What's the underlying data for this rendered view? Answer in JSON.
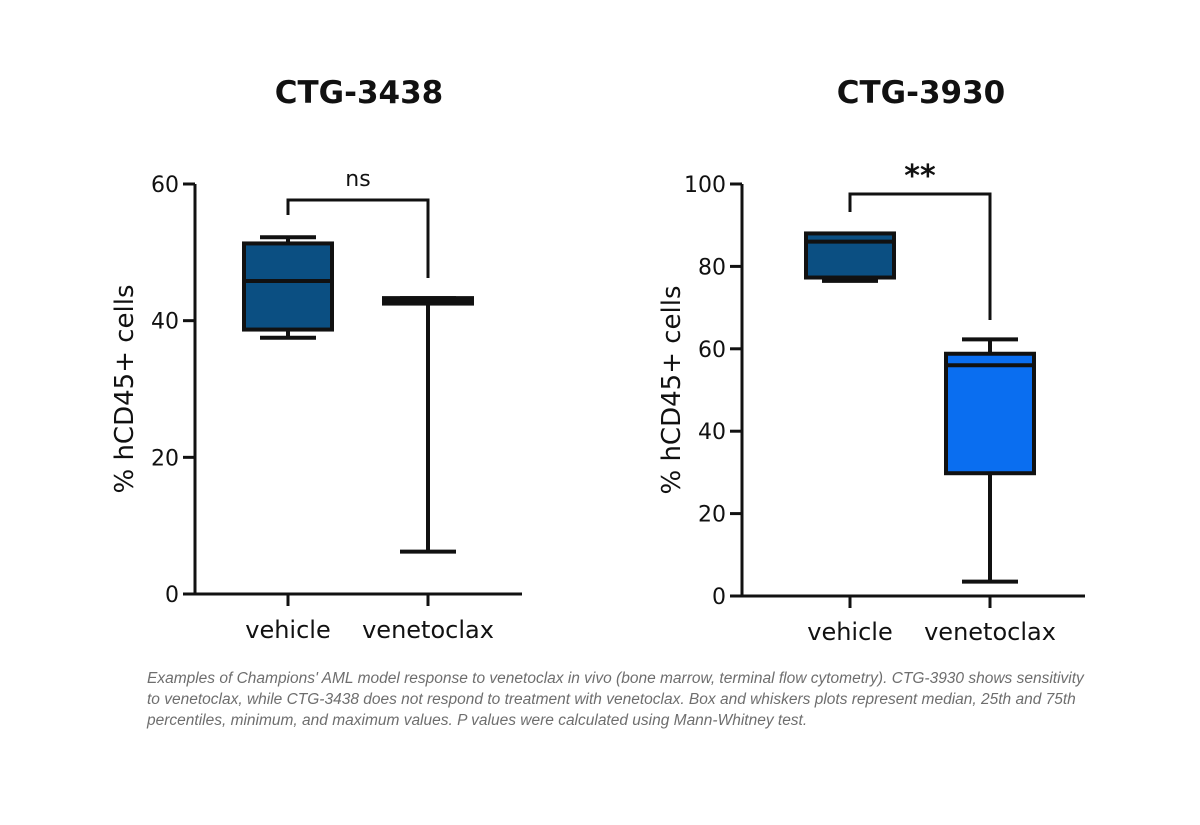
{
  "chart_data": [
    {
      "type": "box",
      "title": "CTG-3438",
      "ylabel": "% hCD45+ cells",
      "xlabel": "",
      "ylim": [
        0,
        60
      ],
      "yticks": [
        0,
        20,
        40,
        60
      ],
      "categories": [
        "vehicle",
        "venetoclax"
      ],
      "boxes": [
        {
          "category": "vehicle",
          "min": 37.5,
          "q1": 38.7,
          "median": 45.8,
          "q3": 51.3,
          "max": 52.2,
          "color": "#0b4f82"
        },
        {
          "category": "venetoclax",
          "min": 6.2,
          "q1": 42.5,
          "median": 43.0,
          "q3": 43.3,
          "max": 43.3,
          "color": "#0b4f82"
        }
      ],
      "significance": {
        "label": "ns",
        "between": [
          "vehicle",
          "venetoclax"
        ]
      },
      "grid": false
    },
    {
      "type": "box",
      "title": "CTG-3930",
      "ylabel": "% hCD45+ cells",
      "xlabel": "",
      "ylim": [
        0,
        100
      ],
      "yticks": [
        0,
        20,
        40,
        60,
        80,
        100
      ],
      "categories": [
        "vehicle",
        "venetoclax"
      ],
      "boxes": [
        {
          "category": "vehicle",
          "min": 76.5,
          "q1": 77.3,
          "median": 86.0,
          "q3": 88.0,
          "max": 88.0,
          "color": "#0b4f82"
        },
        {
          "category": "venetoclax",
          "min": 3.5,
          "q1": 29.8,
          "median": 56.0,
          "q3": 58.8,
          "max": 62.3,
          "color": "#0a6ef0"
        }
      ],
      "significance": {
        "label": "**",
        "between": [
          "vehicle",
          "venetoclax"
        ]
      },
      "grid": false
    }
  ],
  "caption": "Examples of Champions' AML model response to venetoclax in vivo (bone marrow, terminal flow cytometry). CTG-3930 shows sensitivity to venetoclax, while CTG-3438 does not respond to treatment with venetoclax. Box and whiskers plots represent median, 25th and 75th percentiles, minimum, and maximum values. P values were calculated using Mann-Whitney test."
}
